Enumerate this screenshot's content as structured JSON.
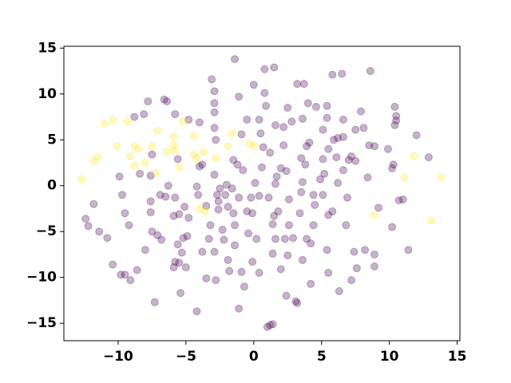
{
  "chart_data": {
    "type": "scatter",
    "xlim": [
      -14,
      15.2
    ],
    "ylim": [
      -16.9,
      15.2
    ],
    "xticks": [
      {
        "value": -10,
        "label": "−10"
      },
      {
        "value": -5,
        "label": "−5"
      },
      0,
      5,
      10,
      15
    ],
    "yticks": [
      {
        "value": -15,
        "label": "−15"
      },
      {
        "value": -10,
        "label": "−10"
      },
      {
        "value": -5,
        "label": "−5"
      },
      0,
      5,
      10,
      15
    ],
    "alpha": 0.3,
    "series": [
      {
        "color": "#440154",
        "x": [
          -11.8,
          -12.4,
          -12.2,
          -11.4,
          -10.8,
          -10.4,
          -9.8,
          -9.5,
          -9.1,
          -8.6,
          -9.5,
          -9.2,
          -9.7,
          -9.9,
          -8.8,
          -8.1,
          -8.4,
          -8.0,
          -7.6,
          -7.6,
          -7.5,
          -7.3,
          -7.5,
          -7.1,
          -6.8,
          -6.9,
          -6.6,
          -6.4,
          -6.5,
          -6.3,
          -5.9,
          -5.8,
          -5.9,
          -5.5,
          -5.5,
          -5.3,
          -5.2,
          -5.1,
          -5.4,
          -5.0,
          -5.8,
          -5.6,
          -4.9,
          -4.1,
          -4.0,
          -4.0,
          -4.2,
          -3.8,
          -3.5,
          -3.5,
          -3.1,
          -2.9,
          -2.9,
          -2.9,
          -2.9,
          -2.8,
          -2.9,
          -2.7,
          -2.6,
          -2.6,
          -3.2,
          -3.3,
          -2.9,
          -2.8,
          -2.5,
          -2.3,
          -2.2,
          -2.1,
          -1.9,
          -1.8,
          -1.6,
          -1.5,
          -1.5,
          -1.4,
          -1.4,
          -1.2,
          -1.1,
          -1.1,
          -0.9,
          -0.9,
          -0.8,
          -0.7,
          -0.5,
          -0.5,
          -0.4,
          -0.1,
          -0.1,
          0,
          0.1,
          0.2,
          0.4,
          0.5,
          0.6,
          0.8,
          0.8,
          0.9,
          1.0,
          1.2,
          1.4,
          1.5,
          1.2,
          1.4,
          1.4,
          1.6,
          1.6,
          1.6,
          1.8,
          2.0,
          2.2,
          2.2,
          2.3,
          2.5,
          2.6,
          2.4,
          2.5,
          2.8,
          2.9,
          3.1,
          3.2,
          3.2,
          3.4,
          3.5,
          3.6,
          3.5,
          3.6,
          3.7,
          3.8,
          3.9,
          3.9,
          4.0,
          4.1,
          4.2,
          4.2,
          4.4,
          4.5,
          4.6,
          5.1,
          5.1,
          5.1,
          5.2,
          5.4,
          5.4,
          5.4,
          5.5,
          5.5,
          5.5,
          5.8,
          5.8,
          5.9,
          6.1,
          6.2,
          6.3,
          6.5,
          6.6,
          6.6,
          6.6,
          6.8,
          6.9,
          7.0,
          7.2,
          7.4,
          7.5,
          7.5,
          7.6,
          7.9,
          8.1,
          8.2,
          8.4,
          8.5,
          8.6,
          8.9,
          8.9,
          8.9,
          9.2,
          9.9,
          10.2,
          10.2,
          10.3,
          10.4,
          10.4,
          10.5,
          10.5,
          10.7,
          11.0,
          11.4,
          12.0,
          12.9,
          7.2,
          6.2,
          1.7,
          2.4,
          0.4,
          0.7,
          -1.9,
          -4.2,
          -4.8,
          -5.6,
          -0.2,
          2.6,
          4.4,
          4.9,
          3.6,
          1.1,
          -1.1,
          -2.0,
          1.5,
          2.0,
          0.4,
          -1.4,
          -3.8,
          -5.8,
          -7.6,
          -7.8,
          -4.8
        ],
        "values": [
          -2.0,
          -3.6,
          -4.4,
          -5.0,
          -5.7,
          -8.6,
          -9.7,
          -9.7,
          -10.3,
          -9.2,
          -3.0,
          -4.3,
          -1.0,
          1.0,
          7.5,
          7.8,
          1.3,
          -7.0,
          -2.9,
          -1.7,
          3.4,
          -12.7,
          -5.0,
          -5.4,
          -5.9,
          -1.0,
          9.4,
          9.2,
          -1.2,
          0.0,
          -3.3,
          -8.3,
          -8.9,
          -8.4,
          -3.1,
          -7.3,
          -5.7,
          -2.3,
          -11.7,
          -8.9,
          7.8,
          2.9,
          -5.5,
          -1.0,
          2.1,
          6.9,
          -13.7,
          -7.2,
          -10.1,
          -2.2,
          11.6,
          9.0,
          10.3,
          8.0,
          6.3,
          5.0,
          1.2,
          -1.0,
          -1.7,
          -2.6,
          -4.3,
          -5.8,
          -7.2,
          -10.3,
          -0.3,
          -4.8,
          -5.9,
          -1.0,
          -8.1,
          -9.3,
          -0.3,
          -3.0,
          2.8,
          13.8,
          -4.3,
          2.3,
          9.7,
          -13.4,
          -9.4,
          5.6,
          1.7,
          -11.0,
          -2.8,
          7.2,
          -5.2,
          -8.3,
          -3.0,
          11.0,
          0.3,
          -5.8,
          -1.1,
          5.7,
          2.0,
          12.7,
          10.1,
          8.7,
          -15.4,
          -15.2,
          -15.1,
          12.9,
          3.6,
          -7.4,
          -4.2,
          0.2,
          6.6,
          -5.8,
          -2.8,
          1.9,
          6.4,
          4.4,
          -5.8,
          -7.6,
          -1.5,
          -12.0,
          8.5,
          7.0,
          -5.7,
          -12.6,
          -12.8,
          11.1,
          -3.0,
          -0.7,
          -8.1,
          3.0,
          7.3,
          11.1,
          2.3,
          -5.8,
          4.3,
          9.0,
          4.7,
          -10.7,
          -6.3,
          -4.3,
          -2.1,
          8.6,
          -1.0,
          2.9,
          6.1,
          1.3,
          8.7,
          7.4,
          -7.0,
          -9.5,
          -3.2,
          4.0,
          -2.8,
          12.1,
          5.0,
          3.1,
          0.3,
          -11.5,
          12.2,
          7.2,
          5.3,
          1.7,
          -4.3,
          -1.3,
          2.8,
          -10.3,
          -7.2,
          6.1,
          2.7,
          -9.0,
          8.1,
          6.3,
          -7.0,
          0.9,
          4.4,
          12.5,
          -7.5,
          4.3,
          -8.8,
          -2.4,
          4.0,
          -4.5,
          1.9,
          2.3,
          6.6,
          8.6,
          7.1,
          7.6,
          -1.6,
          -1.5,
          -7.0,
          5.5,
          3.1,
          3.2,
          5.2,
          1.0,
          1.6,
          7.2,
          4.2,
          -2.3,
          -0.1,
          -3.5,
          -6.4,
          -1.3,
          -4.3,
          -1.0,
          0.7,
          0.4,
          -1.3,
          -1.3,
          0.1,
          -3.3,
          -9.1,
          -9.5,
          -6.5,
          2.3,
          -1.3,
          1.1,
          9.2,
          7.2
        ]
      },
      {
        "color": "#fde725",
        "x": [
          -12.7,
          -11.8,
          -11.5,
          -11.0,
          -10.4,
          -10.1,
          -9.3,
          -9.1,
          -8.8,
          -8.5,
          -8.8,
          -8.0,
          -7.5,
          -7.2,
          -7.1,
          -6.4,
          -5.9,
          -5.9,
          -5.8,
          -5.5,
          -5.2,
          -4.4,
          -4.4,
          -4.2,
          -4.0,
          -3.6,
          -3.7,
          -2.8,
          -1.9,
          -1.6,
          -0.3,
          0,
          8.9,
          11.1,
          11.8,
          13.1,
          13.8
        ],
        "values": [
          0.7,
          2.7,
          3.1,
          6.8,
          7.2,
          4.3,
          7.0,
          3.2,
          4.3,
          4.0,
          2.2,
          2.5,
          4.3,
          1.4,
          6.0,
          3.7,
          5.3,
          4.4,
          3.8,
          2.0,
          7.0,
          5.4,
          3.4,
          3.0,
          -2.5,
          -2.8,
          3.7,
          3.0,
          4.3,
          5.7,
          4.6,
          4.3,
          -3.2,
          0.9,
          3.2,
          -3.8,
          0.9
        ]
      }
    ]
  }
}
